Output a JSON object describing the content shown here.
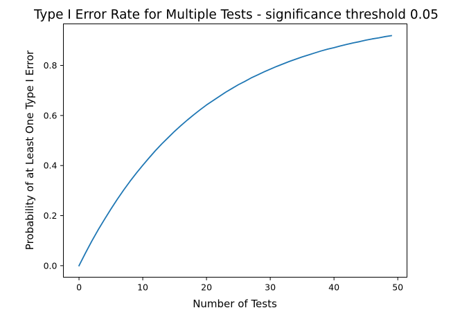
{
  "chart_data": {
    "type": "line",
    "title": "Type I Error Rate for Multiple Tests - significance threshold 0.05",
    "xlabel": "Number of Tests",
    "ylabel": "Probability of at Least One Type I Error",
    "xlim": [
      -2.45,
      51.45
    ],
    "ylim": [
      -0.046,
      0.966
    ],
    "xticks": [
      0,
      10,
      20,
      30,
      40,
      50
    ],
    "xtick_labels": [
      "0",
      "10",
      "20",
      "30",
      "40",
      "50"
    ],
    "yticks": [
      0.0,
      0.2,
      0.4,
      0.6,
      0.8
    ],
    "ytick_labels": [
      "0.0",
      "0.2",
      "0.4",
      "0.6",
      "0.8"
    ],
    "grid": false,
    "series": [
      {
        "color": "#1f77b4",
        "x": [
          0,
          1,
          2,
          3,
          4,
          5,
          6,
          7,
          8,
          9,
          10,
          11,
          12,
          13,
          14,
          15,
          16,
          17,
          18,
          19,
          20,
          21,
          22,
          23,
          24,
          25,
          26,
          27,
          28,
          29,
          30,
          31,
          32,
          33,
          34,
          35,
          36,
          37,
          38,
          39,
          40,
          41,
          42,
          43,
          44,
          45,
          46,
          47,
          48,
          49
        ],
        "y": [
          0.0,
          0.05,
          0.098,
          0.143,
          0.185,
          0.226,
          0.265,
          0.302,
          0.337,
          0.37,
          0.401,
          0.431,
          0.46,
          0.487,
          0.512,
          0.537,
          0.56,
          0.582,
          0.603,
          0.623,
          0.642,
          0.659,
          0.676,
          0.693,
          0.708,
          0.723,
          0.736,
          0.75,
          0.762,
          0.774,
          0.785,
          0.796,
          0.806,
          0.816,
          0.825,
          0.834,
          0.842,
          0.85,
          0.858,
          0.865,
          0.871,
          0.878,
          0.884,
          0.89,
          0.895,
          0.901,
          0.906,
          0.91,
          0.915,
          0.919
        ]
      }
    ]
  }
}
